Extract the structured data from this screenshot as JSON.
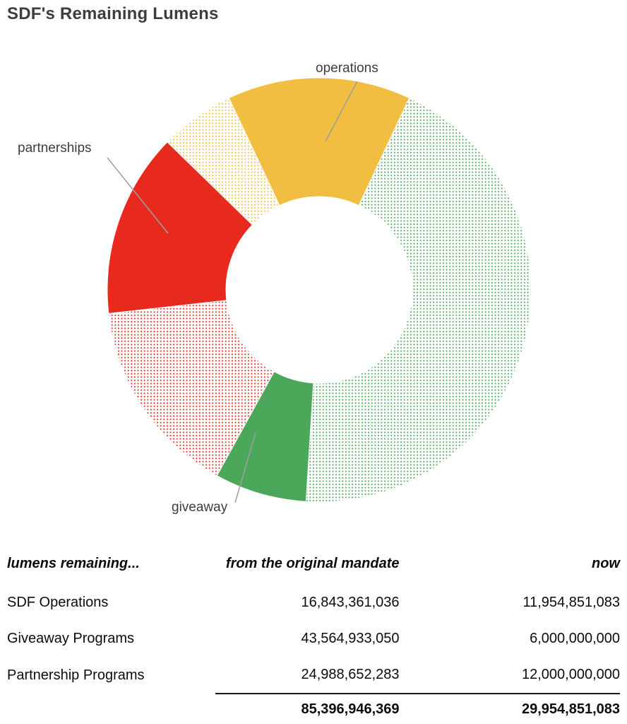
{
  "page": {
    "title": "SDF's Remaining Lumens"
  },
  "chart_data": {
    "type": "pie",
    "variant": "donut",
    "title": "SDF's Remaining Lumens",
    "unit": "lumens",
    "total": 85396946369,
    "start_angle_deg": -25.2,
    "inner_radius_ratio": 0.44,
    "legend_position": "callout-labels",
    "segments": [
      {
        "id": "operations-now",
        "category": "SDF Operations",
        "label": "operations",
        "value": 11954851083,
        "style": "solid",
        "color": "#F2BE42"
      },
      {
        "id": "giveaway-spent",
        "category": "Giveaway Programs",
        "label": "",
        "value": 37564933050,
        "style": "dotted",
        "color": "#4BA85A"
      },
      {
        "id": "giveaway-now",
        "category": "Giveaway Programs",
        "label": "giveaway",
        "value": 6000000000,
        "style": "solid",
        "color": "#4BA85A"
      },
      {
        "id": "partnership-spent",
        "category": "Partnership Programs",
        "label": "",
        "value": 12988652283,
        "style": "dotted",
        "color": "#E8291D"
      },
      {
        "id": "partnership-now",
        "category": "Partnership Programs",
        "label": "partnerships",
        "value": 12000000000,
        "style": "solid",
        "color": "#E8291D"
      },
      {
        "id": "operations-spent",
        "category": "SDF Operations",
        "label": "",
        "value": 4888509953,
        "style": "dotted",
        "color": "#F2BE42"
      }
    ],
    "labels": {
      "operations": "operations",
      "partnerships": "partnerships",
      "giveaway": "giveaway"
    }
  },
  "table": {
    "headers": [
      "lumens remaining...",
      "from the original mandate",
      "now"
    ],
    "rows": [
      {
        "name": "SDF Operations",
        "original": "16,843,361,036",
        "now": "11,954,851,083"
      },
      {
        "name": "Giveaway Programs",
        "original": "43,564,933,050",
        "now": "6,000,000,000"
      },
      {
        "name": "Partnership Programs",
        "original": "24,988,652,283",
        "now": "12,000,000,000"
      }
    ],
    "total": {
      "original": "85,396,946,369",
      "now": "29,954,851,083"
    }
  },
  "colors": {
    "title_text": "#3d3d3d",
    "label_text": "#3d3d3d",
    "leader_line": "#9e9e9e",
    "operations": "#F2BE42",
    "partnerships": "#E8291D",
    "giveaway": "#4BA85A"
  }
}
